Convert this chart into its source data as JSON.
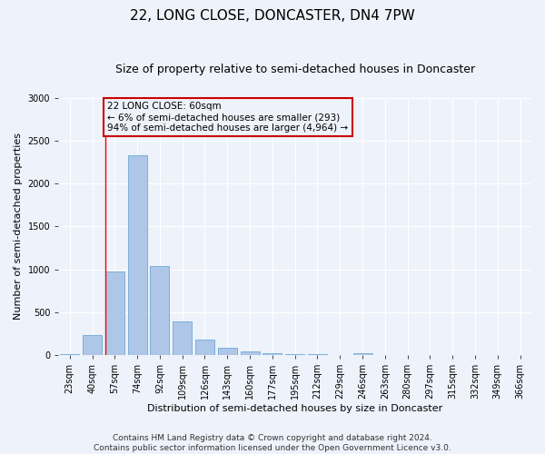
{
  "title": "22, LONG CLOSE, DONCASTER, DN4 7PW",
  "subtitle": "Size of property relative to semi-detached houses in Doncaster",
  "xlabel": "Distribution of semi-detached houses by size in Doncaster",
  "ylabel": "Number of semi-detached properties",
  "categories": [
    "23sqm",
    "40sqm",
    "57sqm",
    "74sqm",
    "92sqm",
    "109sqm",
    "126sqm",
    "143sqm",
    "160sqm",
    "177sqm",
    "195sqm",
    "212sqm",
    "229sqm",
    "246sqm",
    "263sqm",
    "280sqm",
    "297sqm",
    "315sqm",
    "332sqm",
    "349sqm",
    "366sqm"
  ],
  "values": [
    15,
    230,
    970,
    2330,
    1040,
    390,
    185,
    85,
    45,
    25,
    15,
    10,
    5,
    20,
    5,
    0,
    0,
    0,
    0,
    0,
    0
  ],
  "bar_color": "#aec6e8",
  "bar_edge_color": "#5a9fd4",
  "pct_smaller": 6,
  "num_smaller": 293,
  "pct_larger": 94,
  "num_larger": "4,964",
  "property_sqm": "60sqm",
  "property_label": "22 LONG CLOSE",
  "annotation_box_color": "#cc0000",
  "property_line_index": 2,
  "ylim": [
    0,
    3000
  ],
  "yticks": [
    0,
    500,
    1000,
    1500,
    2000,
    2500,
    3000
  ],
  "footer_line1": "Contains HM Land Registry data © Crown copyright and database right 2024.",
  "footer_line2": "Contains public sector information licensed under the Open Government Licence v3.0.",
  "bg_color": "#eef2fa",
  "grid_color": "#ffffff",
  "title_fontsize": 11,
  "subtitle_fontsize": 9,
  "axis_label_fontsize": 8,
  "tick_fontsize": 7,
  "footer_fontsize": 6.5,
  "annotation_fontsize": 7.5
}
